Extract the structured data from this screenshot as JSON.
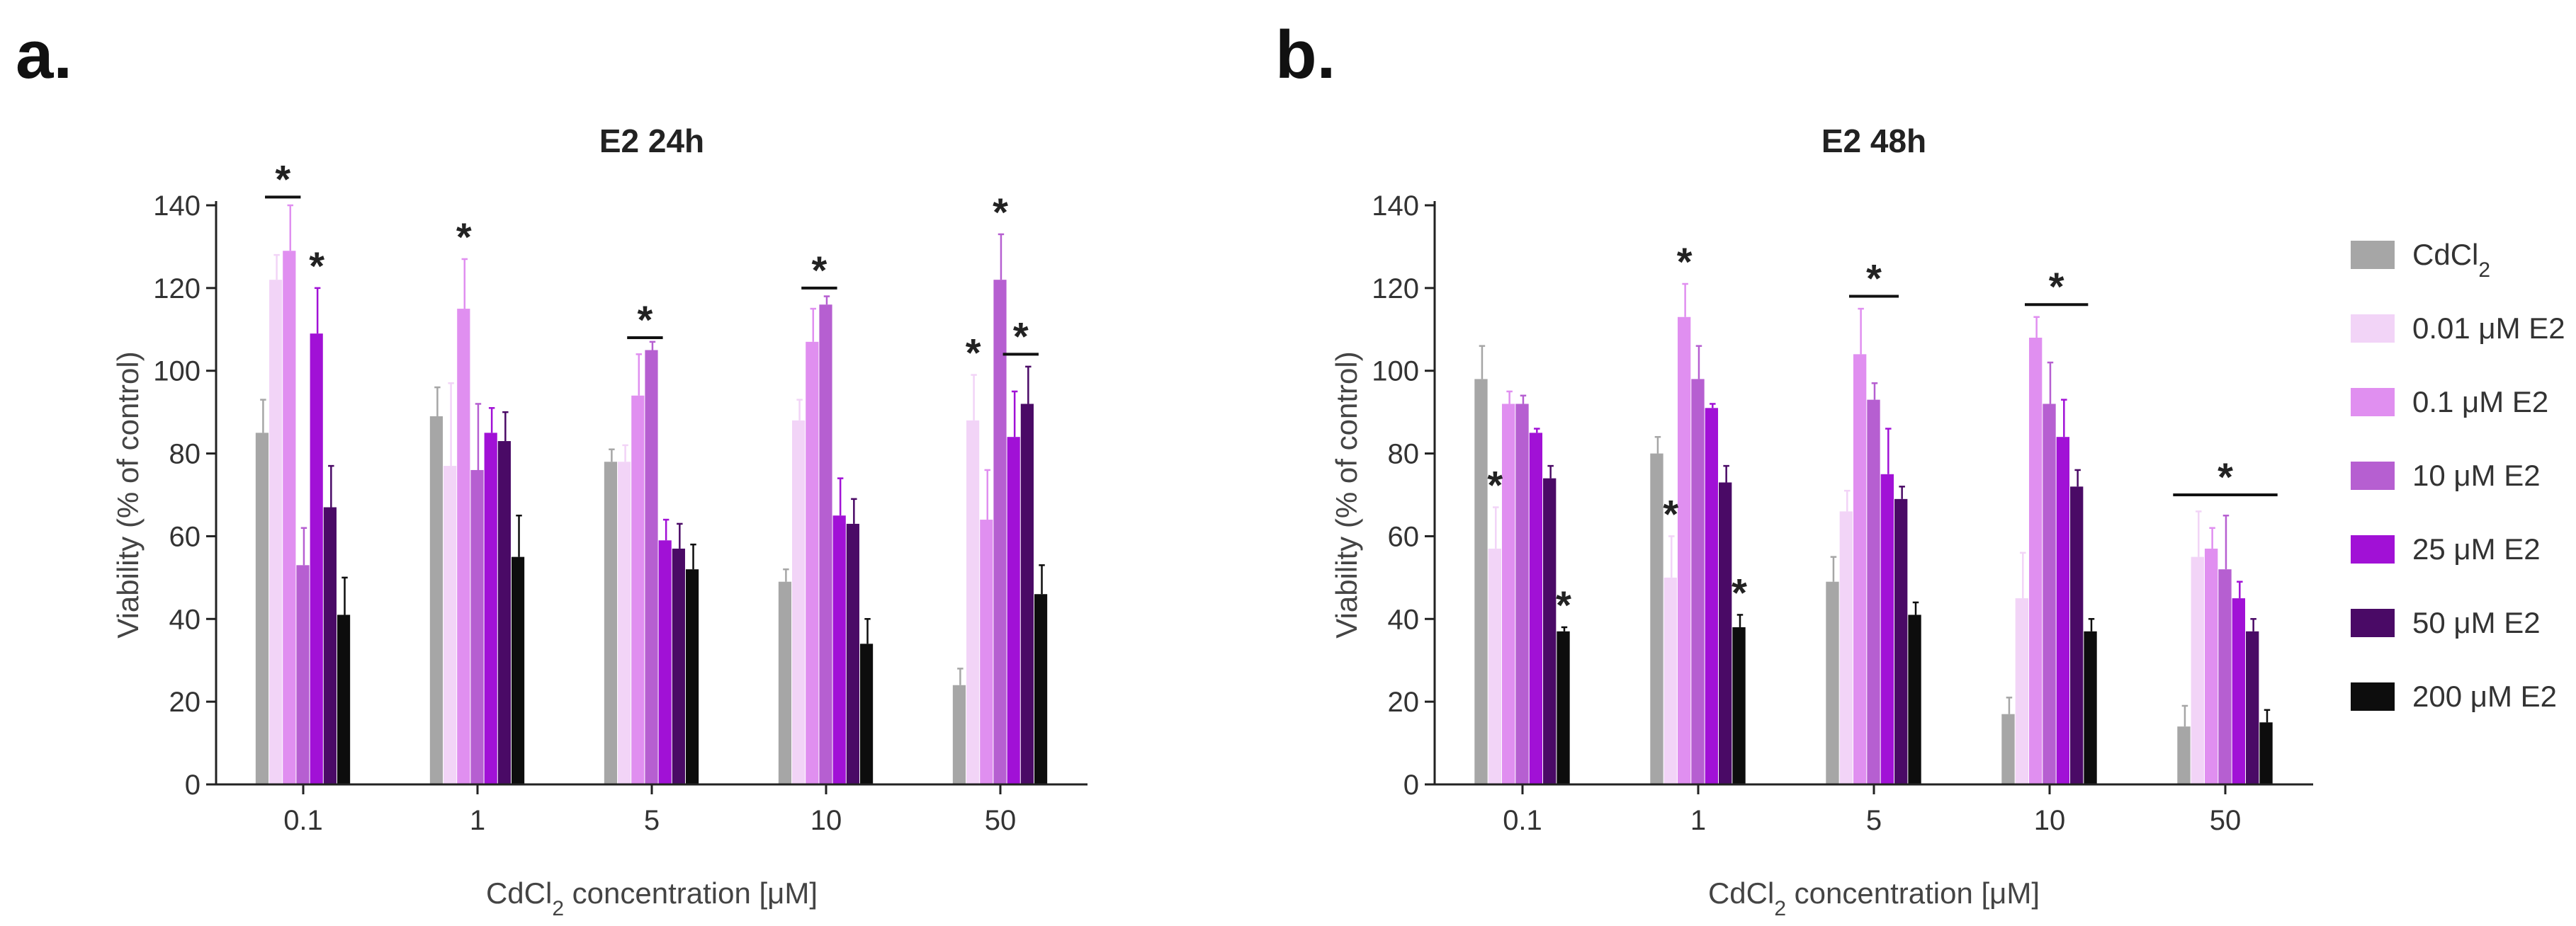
{
  "panel_letters": [
    "a.",
    "b."
  ],
  "legend": {
    "entries": [
      {
        "label_pre": "CdCl",
        "label_sub": "2",
        "label_post": "",
        "color": "#a6a6a6"
      },
      {
        "label_pre": "0.01 μM E2",
        "label_sub": "",
        "label_post": "",
        "color": "#f2d4f7"
      },
      {
        "label_pre": "0.1 μM E2",
        "label_sub": "",
        "label_post": "",
        "color": "#e08ff0"
      },
      {
        "label_pre": "10 μM E2",
        "label_sub": "",
        "label_post": "",
        "color": "#b65fd1"
      },
      {
        "label_pre": "25 μM E2",
        "label_sub": "",
        "label_post": "",
        "color": "#a111d6"
      },
      {
        "label_pre": "50 μM E2",
        "label_sub": "",
        "label_post": "",
        "color": "#4a0a66"
      },
      {
        "label_pre": "200 μM E2",
        "label_sub": "",
        "label_post": "",
        "color": "#0d0d0d"
      }
    ]
  },
  "chart_data": [
    {
      "type": "bar",
      "title": "E2 24h",
      "xlabel_pre": "CdCl",
      "xlabel_sub": "2",
      "xlabel_post": " concentration [μM]",
      "ylabel": "Viability (% of control)",
      "ylim": [
        0,
        140
      ],
      "yticks": [
        0,
        20,
        40,
        60,
        80,
        100,
        120,
        140
      ],
      "categories": [
        "0.1",
        "1",
        "5",
        "10",
        "50"
      ],
      "series": [
        {
          "name": "CdCl2",
          "values": [
            85,
            89,
            78,
            49,
            24
          ],
          "errors": [
            8,
            7,
            3,
            3,
            4
          ]
        },
        {
          "name": "0.01 μM E2",
          "values": [
            122,
            77,
            78,
            88,
            88
          ],
          "errors": [
            6,
            20,
            4,
            5,
            11
          ]
        },
        {
          "name": "0.1 μM E2",
          "values": [
            129,
            115,
            94,
            107,
            64
          ],
          "errors": [
            11,
            12,
            10,
            8,
            12
          ]
        },
        {
          "name": "10 μM E2",
          "values": [
            53,
            76,
            105,
            116,
            122
          ],
          "errors": [
            9,
            16,
            2,
            2,
            11
          ]
        },
        {
          "name": "25 μM E2",
          "values": [
            109,
            85,
            59,
            65,
            84
          ],
          "errors": [
            11,
            6,
            5,
            9,
            11
          ]
        },
        {
          "name": "50 μM E2",
          "values": [
            67,
            83,
            57,
            63,
            92
          ],
          "errors": [
            10,
            7,
            6,
            6,
            9
          ]
        },
        {
          "name": "200 μM E2",
          "values": [
            41,
            55,
            52,
            34,
            46
          ],
          "errors": [
            9,
            10,
            6,
            6,
            7
          ]
        }
      ],
      "significance": [
        {
          "category": 0,
          "from": 1,
          "to": 2,
          "y": 142,
          "label": "*"
        },
        {
          "category": 0,
          "from": 4,
          "to": 4,
          "y": 121,
          "label": "*"
        },
        {
          "category": 1,
          "from": 2,
          "to": 2,
          "y": 128,
          "label": "*"
        },
        {
          "category": 2,
          "from": 2,
          "to": 3,
          "y": 108,
          "label": "*"
        },
        {
          "category": 3,
          "from": 2,
          "to": 3,
          "y": 120,
          "label": "*"
        },
        {
          "category": 4,
          "from": 1,
          "to": 1,
          "y": 100,
          "label": "*"
        },
        {
          "category": 4,
          "from": 3,
          "to": 3,
          "y": 134,
          "label": "*"
        },
        {
          "category": 4,
          "from": 4,
          "to": 5,
          "y": 104,
          "label": "*"
        }
      ]
    },
    {
      "type": "bar",
      "title": "E2 48h",
      "xlabel_pre": "CdCl",
      "xlabel_sub": "2",
      "xlabel_post": " concentration [μM]",
      "ylabel": "Viability (% of control)",
      "ylim": [
        0,
        140
      ],
      "yticks": [
        0,
        20,
        40,
        60,
        80,
        100,
        120,
        140
      ],
      "categories": [
        "0.1",
        "1",
        "5",
        "10",
        "50"
      ],
      "series": [
        {
          "name": "CdCl2",
          "values": [
            98,
            80,
            49,
            17,
            14
          ],
          "errors": [
            8,
            4,
            6,
            4,
            5
          ]
        },
        {
          "name": "0.01 μM E2",
          "values": [
            57,
            50,
            66,
            45,
            55
          ],
          "errors": [
            10,
            10,
            5,
            11,
            11
          ]
        },
        {
          "name": "0.1 μM E2",
          "values": [
            92,
            113,
            104,
            108,
            57
          ],
          "errors": [
            3,
            8,
            11,
            5,
            5
          ]
        },
        {
          "name": "10 μM E2",
          "values": [
            92,
            98,
            93,
            92,
            52
          ],
          "errors": [
            2,
            8,
            4,
            10,
            13
          ]
        },
        {
          "name": "25 μM E2",
          "values": [
            85,
            91,
            75,
            84,
            45
          ],
          "errors": [
            1,
            1,
            11,
            9,
            4
          ]
        },
        {
          "name": "50 μM E2",
          "values": [
            74,
            73,
            69,
            72,
            37
          ],
          "errors": [
            3,
            4,
            3,
            4,
            3
          ]
        },
        {
          "name": "200 μM E2",
          "values": [
            37,
            38,
            41,
            37,
            15
          ],
          "errors": [
            1,
            3,
            3,
            3,
            3
          ]
        }
      ],
      "significance": [
        {
          "category": 0,
          "from": 1,
          "to": 1,
          "y": 68,
          "label": "*"
        },
        {
          "category": 0,
          "from": 6,
          "to": 6,
          "y": 39,
          "label": "*"
        },
        {
          "category": 1,
          "from": 1,
          "to": 1,
          "y": 61,
          "label": "*"
        },
        {
          "category": 1,
          "from": 2,
          "to": 2,
          "y": 122,
          "label": "*"
        },
        {
          "category": 1,
          "from": 6,
          "to": 6,
          "y": 42,
          "label": "*"
        },
        {
          "category": 2,
          "from": 2,
          "to": 4,
          "y": 118,
          "label": "*"
        },
        {
          "category": 3,
          "from": 2,
          "to": 5,
          "y": 116,
          "label": "*"
        },
        {
          "category": 4,
          "from": 0,
          "to": 6,
          "y": 70,
          "label": "*"
        }
      ]
    }
  ]
}
